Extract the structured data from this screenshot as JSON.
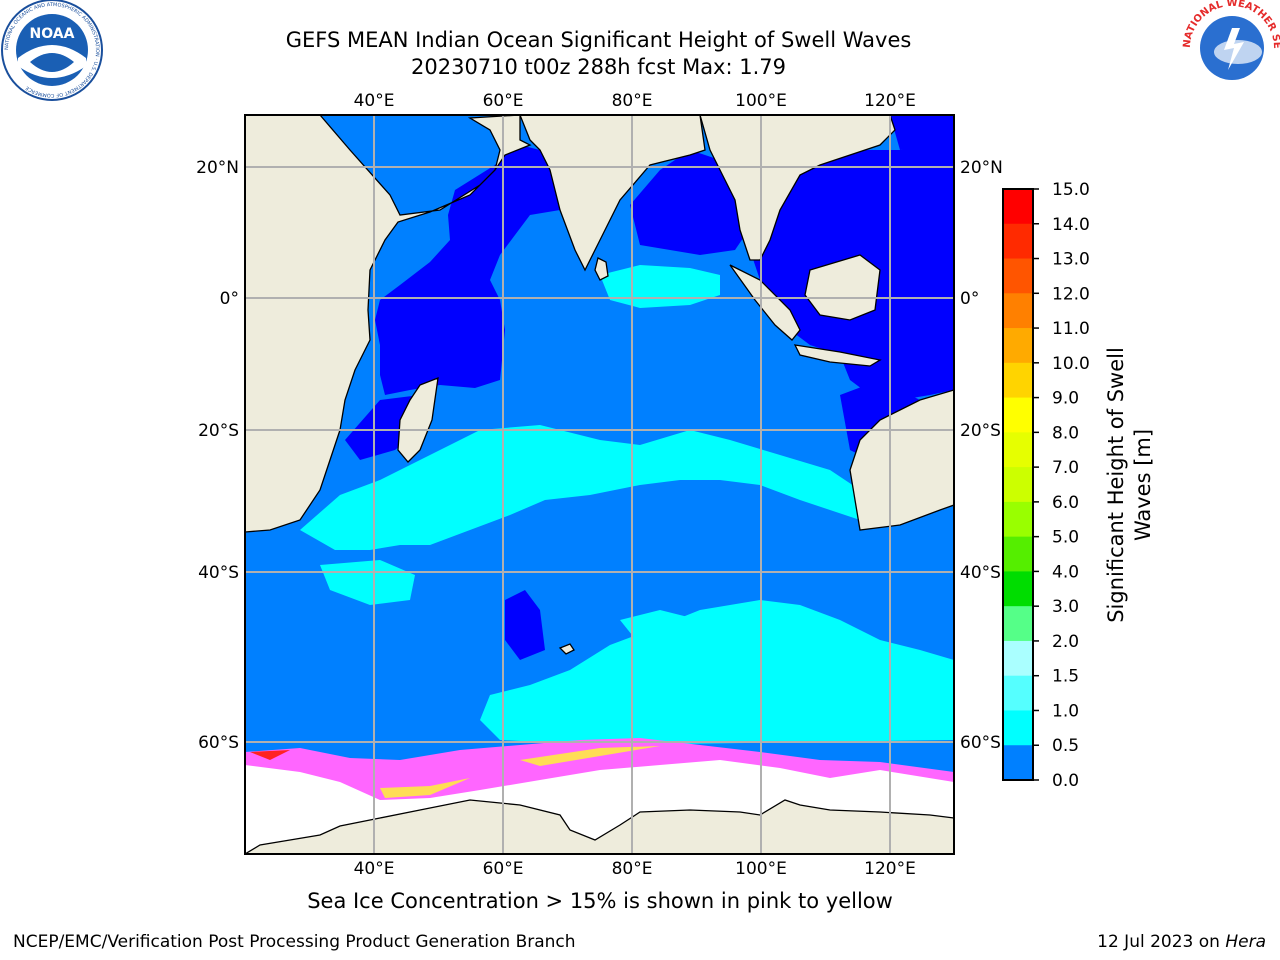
{
  "header": {
    "title_line1": "GEFS MEAN Indian Ocean Significant Height of Swell Waves",
    "title_line2": "20230710 t00z 288h fcst   Max: 1.79"
  },
  "logos": {
    "noaa_text": "NOAA",
    "noaa_ring_text": "NATIONAL OCEANIC AND ATMOSPHERIC ADMINISTRATION · U.S. DEPARTMENT OF COMMERCE",
    "nws_ring_text": "NATIONAL WEATHER SERVICE"
  },
  "map": {
    "lon_labels": [
      "40°E",
      "60°E",
      "80°E",
      "100°E",
      "120°E"
    ],
    "lat_labels": [
      "20°N",
      "0°",
      "20°S",
      "40°S",
      "60°S"
    ],
    "extent": {
      "lon_min": 20,
      "lon_max": 130,
      "lat_min": -70,
      "lat_max": 28
    },
    "colors": {
      "land": "#eeecdc",
      "ocean_0_0_5": "#0000ff",
      "ocean_0_5_1": "#0080ff",
      "ocean_1_1_5": "#00ffff",
      "sea_ice_pink": "#ff66ff",
      "sea_ice_yellow": "#ffdd55",
      "ice_white": "#ffffff",
      "gridline": "#b0b0b0"
    }
  },
  "colorbar": {
    "title_line1": "Significant Height of Swell",
    "title_line2": "Waves [m]",
    "ticks": [
      "15.0",
      "14.0",
      "13.0",
      "12.0",
      "11.0",
      "10.0",
      "9.0",
      "8.0",
      "7.0",
      "6.0",
      "5.0",
      "4.0",
      "3.0",
      "2.0",
      "1.5",
      "1.0",
      "0.5",
      "0.0"
    ],
    "colors": [
      "#ff0000",
      "#ff2a00",
      "#ff5500",
      "#ff8000",
      "#ffaa00",
      "#ffd400",
      "#ffff00",
      "#e6ff00",
      "#ccff00",
      "#99ff00",
      "#55ee00",
      "#00dd00",
      "#55ff88",
      "#aaffff",
      "#55ffff",
      "#00ffff",
      "#0080ff",
      "#0000ff"
    ]
  },
  "caption": "Sea Ice Concentration > 15% is shown in pink to yellow",
  "footer": {
    "left": "NCEP/EMC/Verification Post Processing Product Generation Branch",
    "right_date": "12 Jul 2023 on ",
    "right_host": "Hera"
  }
}
